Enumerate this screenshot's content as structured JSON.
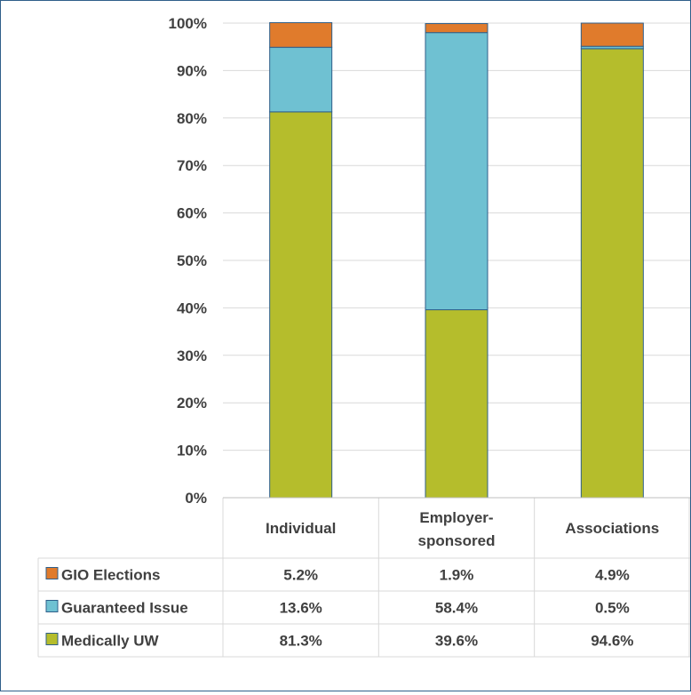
{
  "chart_data": {
    "type": "bar",
    "stacked": true,
    "title": "",
    "xlabel": "",
    "ylabel": "",
    "ylim": [
      0,
      100
    ],
    "y_ticks": [
      "0%",
      "10%",
      "20%",
      "30%",
      "40%",
      "50%",
      "60%",
      "70%",
      "80%",
      "90%",
      "100%"
    ],
    "y_tick_values": [
      0,
      10,
      20,
      30,
      40,
      50,
      60,
      70,
      80,
      90,
      100
    ],
    "grid": true,
    "categories": [
      [
        "Individual"
      ],
      [
        "Employer-",
        "sponsored"
      ],
      [
        "Associations"
      ]
    ],
    "series": [
      {
        "name": "Medically UW",
        "color": "#b5bd2c",
        "values": [
          81.3,
          39.6,
          94.6
        ],
        "labels": [
          "81.3%",
          "39.6%",
          "94.6%"
        ]
      },
      {
        "name": "Guaranteed Issue",
        "color": "#6fc1d2",
        "values": [
          13.6,
          58.4,
          0.5
        ],
        "labels": [
          "13.6%",
          "58.4%",
          "0.5%"
        ]
      },
      {
        "name": "GIO Elections",
        "color": "#e07b2c",
        "values": [
          5.2,
          1.9,
          4.9
        ],
        "labels": [
          "5.2%",
          "1.9%",
          "4.9%"
        ]
      }
    ],
    "table_row_order": [
      "GIO Elections",
      "Guaranteed Issue",
      "Medically UW"
    ],
    "legend_placement": "data-table"
  }
}
